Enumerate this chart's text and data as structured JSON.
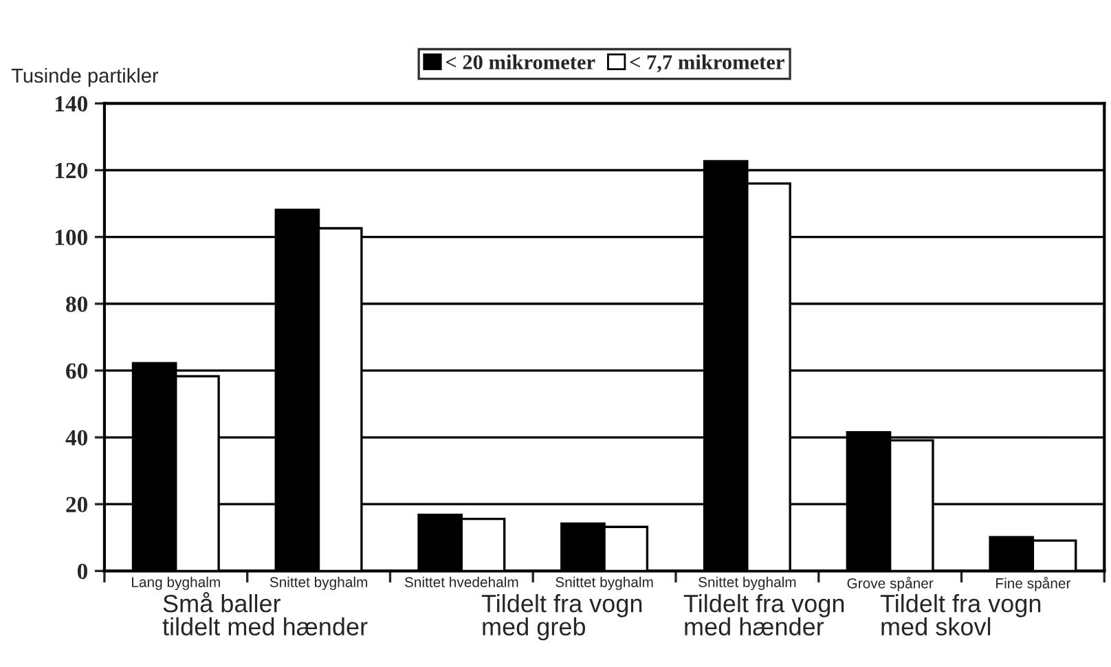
{
  "chart_data": {
    "type": "bar",
    "ylabel": "Tusinde partikler",
    "categories": [
      "Lang byghalm",
      "Snittet byghalm",
      "Snittet hvedehalm",
      "Snittet byghalm",
      "Snittet byghalm",
      "Grove spåner",
      "Fine spåner"
    ],
    "series": [
      {
        "name": "< 20 mikrometer",
        "color": "#000000",
        "values": [
          62.2,
          108.1,
          16.8,
          14.2,
          122.7,
          41.5,
          10.1
        ]
      },
      {
        "name": "< 7,7 mikrometer",
        "color": "#ffffff",
        "values": [
          58.3,
          102.6,
          15.6,
          13.2,
          116.0,
          39.1,
          9.1
        ]
      }
    ],
    "ylim": [
      0,
      140
    ],
    "yticks": [
      0,
      20,
      40,
      60,
      80,
      100,
      120,
      140
    ],
    "grid": "y",
    "legend": "top",
    "annotations": [
      "Små baller\ntildelt med hænder",
      "Tildelt fra vogn\nmed greb",
      "Tildelt fra vogn\nmed hænder",
      "Tildelt fra vogn\nmed skovl"
    ]
  }
}
